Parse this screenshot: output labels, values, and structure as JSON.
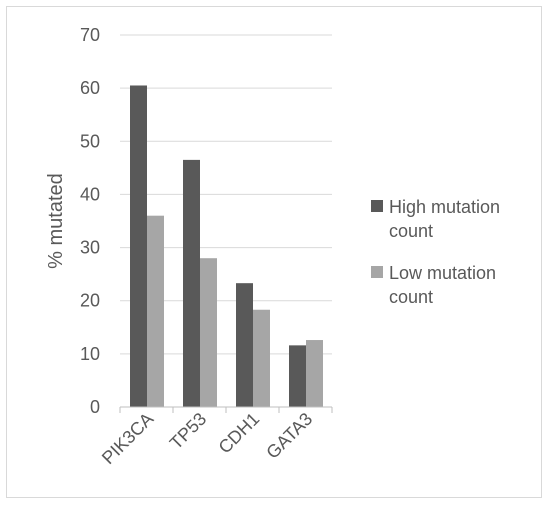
{
  "chart_data": {
    "type": "bar",
    "title": "",
    "xlabel": "",
    "ylabel": "% mutated",
    "ylim": [
      0,
      70
    ],
    "yticks": [
      0,
      10,
      20,
      30,
      40,
      50,
      60,
      70
    ],
    "grid": true,
    "legend_position": "right",
    "categories": [
      "PIK3CA",
      "TP53",
      "CDH1",
      "GATA3"
    ],
    "series": [
      {
        "name": "High mutation count",
        "name_lines": [
          "High mutation",
          "count"
        ],
        "color": "#595959",
        "values": [
          60.5,
          46.5,
          23.3,
          11.6
        ]
      },
      {
        "name": "Low mutation count",
        "name_lines": [
          "Low mutation",
          "count"
        ],
        "color": "#a6a6a6",
        "values": [
          36.0,
          28.0,
          18.3,
          12.6
        ]
      }
    ]
  }
}
